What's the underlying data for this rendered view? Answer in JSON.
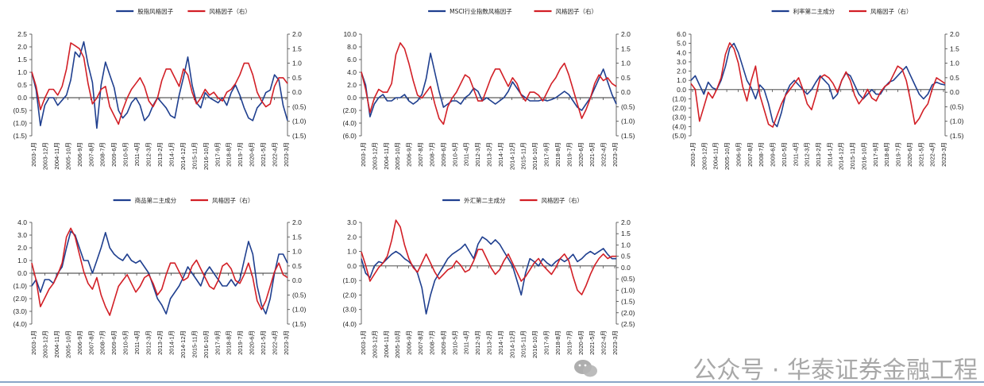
{
  "colors": {
    "blue": "#1f3f8f",
    "red": "#d21f26",
    "axis": "#444444",
    "zero": "#333333"
  },
  "chart_data": [
    {
      "type": "line",
      "legend": {
        "left": "股指风格因子",
        "right": "风格因子（右）"
      },
      "left_ticks": [
        "2.5",
        "2.0",
        "1.5",
        "1.0",
        "0.5",
        "0.0",
        "(0.5)",
        "(1.0)",
        "(1.5)"
      ],
      "right_ticks": [
        "2.0",
        "1.5",
        "1.0",
        "0.5",
        "0.0",
        "(0.5)",
        "(1.0)",
        "(1.5)"
      ],
      "x_ticks": [
        "2003-1月",
        "2003-12月",
        "2004-11月",
        "2005-10月",
        "2006-9月",
        "2007-8月",
        "2008-7月",
        "2009-6月",
        "2010-5月",
        "2011-4月",
        "2012-3月",
        "2013-2月",
        "2014-1月",
        "2014-12月",
        "2015-11月",
        "2016-10月",
        "2017-9月",
        "2018-8月",
        "2019-7月",
        "2020-6月",
        "2021-5月",
        "2022-4月",
        "2023-3月"
      ],
      "series": [
        {
          "axis": "left",
          "color": "blue",
          "values": [
            1.0,
            0.3,
            -1.1,
            -0.3,
            0.0,
            0.0,
            -0.3,
            -0.1,
            0.1,
            0.7,
            1.8,
            1.6,
            2.2,
            1.3,
            0.6,
            -1.2,
            0.5,
            1.4,
            0.9,
            0.4,
            -0.5,
            -0.8,
            -0.6,
            -0.2,
            0.0,
            -0.3,
            -0.9,
            -0.7,
            -0.3,
            0.0,
            -0.2,
            -0.4,
            -0.7,
            -0.8,
            0.1,
            0.8,
            1.6,
            0.5,
            -0.2,
            -0.4,
            0.2,
            0.0,
            -0.1,
            -0.2,
            0.0,
            -0.3,
            0.2,
            0.5,
            0.1,
            -0.4,
            -0.8,
            -0.9,
            -0.4,
            -0.2,
            0.2,
            0.3,
            0.9,
            0.7,
            -0.3,
            -0.9
          ]
        },
        {
          "axis": "right",
          "color": "red",
          "values": [
            0.7,
            0.2,
            -0.6,
            -0.2,
            0.1,
            0.1,
            -0.1,
            0.2,
            0.8,
            1.7,
            1.6,
            1.5,
            1.2,
            0.3,
            -0.4,
            -0.2,
            0.1,
            0.2,
            -0.5,
            -0.8,
            -1.1,
            -0.6,
            -0.2,
            0.1,
            0.3,
            0.5,
            0.2,
            -0.3,
            -0.5,
            -0.2,
            0.4,
            0.8,
            0.8,
            0.5,
            0.2,
            0.8,
            0.6,
            0.0,
            -0.4,
            -0.2,
            0.1,
            -0.1,
            0.0,
            -0.2,
            -0.3,
            0.0,
            0.1,
            0.3,
            0.6,
            1.0,
            1.0,
            0.6,
            0.0,
            -0.3,
            -0.5,
            -0.4,
            0.2,
            0.5,
            0.5,
            0.3
          ]
        }
      ]
    },
    {
      "type": "line",
      "legend": {
        "left": "MSCI行业指数风格因子",
        "right": "风格因子（右）"
      },
      "left_ticks": [
        "10.0",
        "8.0",
        "6.0",
        "4.0",
        "2.0",
        "0.0",
        "(2.0)",
        "(4.0)",
        "(6.0)"
      ],
      "right_ticks": [
        "2.0",
        "1.5",
        "1.0",
        "0.5",
        "0.0",
        "(0.5)",
        "(1.0)",
        "(1.5)"
      ],
      "x_ticks": [
        "2003-1月",
        "2003-12月",
        "2004-11月",
        "2005-10月",
        "2006-9月",
        "2007-8月",
        "2008-7月",
        "2009-6月",
        "2010-5月",
        "2011-4月",
        "2012-3月",
        "2013-2月",
        "2014-1月",
        "2014-12月",
        "2015-11月",
        "2016-10月",
        "2017-9月",
        "2018-8月",
        "2019-7月",
        "2020-6月",
        "2021-5月",
        "2022-4月",
        "2023-3月"
      ],
      "series": [
        {
          "axis": "left",
          "color": "blue",
          "values": [
            4.0,
            2.0,
            -3.0,
            -1.0,
            0.0,
            0.5,
            -0.5,
            -0.5,
            0.0,
            0.0,
            0.5,
            -0.5,
            -1.0,
            -0.5,
            0.5,
            3.0,
            7.0,
            4.0,
            1.0,
            -1.5,
            -1.0,
            -0.5,
            -0.5,
            -1.0,
            0.0,
            0.5,
            1.5,
            1.0,
            -0.5,
            0.0,
            -0.5,
            -1.0,
            -0.5,
            0.0,
            1.0,
            2.5,
            1.5,
            0.5,
            0.0,
            -0.5,
            -0.5,
            -0.5,
            -0.3,
            -0.5,
            -0.3,
            0.0,
            0.5,
            1.0,
            0.5,
            -0.5,
            -1.5,
            -2.0,
            -1.0,
            0.0,
            1.5,
            3.0,
            4.5,
            2.5,
            0.5,
            -1.0
          ]
        },
        {
          "axis": "right",
          "color": "red",
          "values": [
            0.7,
            0.1,
            -0.7,
            -0.2,
            0.1,
            0.0,
            0.0,
            0.3,
            1.3,
            1.7,
            1.5,
            1.0,
            0.4,
            -0.1,
            -0.2,
            0.0,
            0.2,
            -0.4,
            -0.9,
            -1.1,
            -0.5,
            -0.2,
            0.0,
            0.3,
            0.6,
            0.5,
            0.1,
            -0.3,
            -0.3,
            0.1,
            0.5,
            0.8,
            0.8,
            0.5,
            0.2,
            0.5,
            0.3,
            -0.1,
            -0.3,
            0.0,
            0.0,
            -0.1,
            -0.3,
            0.0,
            0.3,
            0.5,
            0.8,
            1.0,
            0.6,
            0.1,
            -0.4,
            -0.9,
            -0.6,
            -0.2,
            0.3,
            0.6,
            0.4,
            0.5,
            0.3,
            0.2
          ]
        }
      ]
    },
    {
      "type": "line",
      "legend": {
        "left": "利率第二主成分",
        "right": "风格因子（右）"
      },
      "left_ticks": [
        "6.0",
        "5.0",
        "4.0",
        "3.0",
        "2.0",
        "1.0",
        "0.0",
        "(1.0)",
        "(2.0)",
        "(3.0)",
        "(4.0)",
        "(5.0)"
      ],
      "right_ticks": [
        "2.0",
        "1.5",
        "1.0",
        "0.5",
        "0.0",
        "(0.5)",
        "(1.0)",
        "(1.5)"
      ],
      "x_ticks": [
        "2003-1月",
        "2003-12月",
        "2004-11月",
        "2005-10月",
        "2006-9月",
        "2007-8月",
        "2008-7月",
        "2009-6月",
        "2010-5月",
        "2011-4月",
        "2012-3月",
        "2013-2月",
        "2014-1月",
        "2014-12月",
        "2015-11月",
        "2016-10月",
        "2017-9月",
        "2018-8月",
        "2019-7月",
        "2020-6月",
        "2021-5月",
        "2022-4月",
        "2023-3月"
      ],
      "series": [
        {
          "axis": "left",
          "color": "blue",
          "values": [
            1.0,
            1.5,
            0.5,
            -0.5,
            0.8,
            0.2,
            0.0,
            1.0,
            2.5,
            4.5,
            5.0,
            4.0,
            2.5,
            1.0,
            0.2,
            -1.0,
            0.5,
            0.0,
            -1.5,
            -3.5,
            -4.0,
            -2.5,
            -0.5,
            0.5,
            1.0,
            0.5,
            0.0,
            -0.5,
            0.0,
            0.8,
            1.5,
            1.0,
            0.5,
            -1.0,
            -0.5,
            1.0,
            1.8,
            1.5,
            0.5,
            -0.5,
            -1.0,
            -0.5,
            0.0,
            -0.5,
            -0.5,
            0.3,
            0.8,
            1.0,
            1.5,
            2.0,
            2.5,
            1.5,
            0.5,
            -0.5,
            -1.0,
            -0.5,
            0.5,
            0.8,
            0.6,
            0.5
          ]
        },
        {
          "axis": "right",
          "color": "red",
          "values": [
            0.3,
            0.1,
            -1.0,
            -0.5,
            0.0,
            -0.2,
            0.1,
            0.5,
            1.3,
            1.7,
            1.5,
            1.0,
            0.2,
            -0.3,
            0.4,
            0.9,
            -0.1,
            -0.6,
            -1.1,
            -1.2,
            -0.8,
            -0.4,
            -0.1,
            0.1,
            0.3,
            0.5,
            0.1,
            -0.4,
            -0.6,
            -0.1,
            0.5,
            0.6,
            0.5,
            0.3,
            0.0,
            0.4,
            0.7,
            0.4,
            -0.1,
            -0.4,
            -0.2,
            0.1,
            -0.2,
            -0.3,
            0.0,
            0.2,
            0.3,
            0.6,
            0.9,
            0.8,
            0.4,
            -0.3,
            -1.1,
            -0.9,
            -0.6,
            -0.4,
            0.1,
            0.5,
            0.4,
            0.3
          ]
        }
      ]
    },
    {
      "type": "line",
      "legend": {
        "left": "商品第二主成分",
        "right": "风格因子（右）"
      },
      "left_ticks": [
        "4.0",
        "3.0",
        "2.0",
        "1.0",
        "0.0",
        "(1.0)",
        "(2.0)",
        "(3.0)",
        "(4.0)"
      ],
      "right_ticks": [
        "2.0",
        "1.5",
        "1.0",
        "0.5",
        "0.0",
        "(0.5)",
        "(1.0)",
        "(1.5)"
      ],
      "x_ticks": [
        "2003-1月",
        "2003-12月",
        "2004-11月",
        "2005-10月",
        "2006-9月",
        "2007-8月",
        "2008-7月",
        "2009-6月",
        "2010-5月",
        "2011-4月",
        "2012-3月",
        "2013-2月",
        "2014-1月",
        "2014-12月",
        "2015-11月",
        "2016-10月",
        "2017-9月",
        "2018-8月",
        "2019-7月",
        "2020-6月",
        "2021-5月",
        "2022-4月",
        "2023-3月"
      ],
      "series": [
        {
          "axis": "left",
          "color": "blue",
          "values": [
            -1.0,
            -0.5,
            -1.5,
            -0.5,
            -0.5,
            -0.8,
            0.0,
            0.5,
            2.0,
            3.3,
            3.0,
            2.0,
            1.0,
            1.0,
            0.0,
            1.0,
            2.0,
            3.2,
            2.0,
            1.5,
            1.2,
            1.0,
            1.5,
            1.0,
            0.8,
            1.0,
            0.5,
            0.0,
            -1.0,
            -2.0,
            -2.5,
            -3.2,
            -2.0,
            -1.5,
            -1.0,
            -0.3,
            0.5,
            0.0,
            -0.5,
            -1.0,
            0.0,
            0.5,
            0.0,
            -0.5,
            -1.0,
            -1.0,
            -0.5,
            -1.0,
            -0.5,
            1.0,
            2.5,
            1.5,
            -1.0,
            -2.5,
            -3.2,
            -2.0,
            0.0,
            1.5,
            1.5,
            0.8
          ]
        },
        {
          "axis": "right",
          "color": "red",
          "values": [
            0.6,
            0.0,
            -0.9,
            -0.6,
            -0.3,
            -0.1,
            0.2,
            0.6,
            1.5,
            1.8,
            1.5,
            0.9,
            0.3,
            -0.1,
            -0.3,
            0.1,
            -0.5,
            -0.9,
            -1.2,
            -0.7,
            -0.2,
            0.0,
            0.2,
            -0.1,
            -0.4,
            -0.2,
            0.1,
            0.2,
            -0.1,
            -0.5,
            -0.3,
            0.2,
            0.6,
            0.6,
            0.3,
            0.0,
            0.1,
            0.5,
            0.7,
            0.4,
            0.1,
            -0.2,
            -0.3,
            0.0,
            0.5,
            0.6,
            0.4,
            0.0,
            -0.1,
            0.2,
            0.6,
            0.1,
            -0.7,
            -1.0,
            -0.7,
            -0.2,
            0.3,
            0.6,
            0.2,
            0.1
          ]
        }
      ]
    },
    {
      "type": "line",
      "legend": {
        "left": "外汇第二主成分",
        "right": "风格因子（右）"
      },
      "left_ticks": [
        "3.0",
        "2.0",
        "1.0",
        "0.0",
        "(1.0)",
        "(2.0)",
        "(3.0)",
        "(4.0)"
      ],
      "right_ticks": [
        "2.0",
        "1.5",
        "1.0",
        "0.5",
        "0.0",
        "(0.5)",
        "(1.0)",
        "(1.5)",
        "(2.0)",
        "(2.5)"
      ],
      "x_ticks": [
        "2003-1月",
        "2003-12月",
        "2004-11月",
        "2005-10月",
        "2006-9月",
        "2007-8月",
        "2008-7月",
        "2009-6月",
        "2010-5月",
        "2011-4月",
        "2012-3月",
        "2013-2月",
        "2014-1月",
        "2014-12月",
        "2015-11月",
        "2016-10月",
        "2017-9月",
        "2018-8月",
        "2019-7月",
        "2020-6月",
        "2021-5月",
        "2022-4月",
        "2023-3月"
      ],
      "series": [
        {
          "axis": "left",
          "color": "blue",
          "values": [
            0.5,
            -0.5,
            -0.8,
            0.0,
            0.3,
            0.2,
            0.5,
            0.8,
            1.0,
            0.8,
            0.5,
            0.3,
            0.0,
            -0.5,
            -1.5,
            -3.3,
            -2.0,
            -1.0,
            -0.5,
            0.0,
            0.5,
            0.8,
            1.0,
            1.2,
            1.5,
            1.0,
            0.5,
            1.5,
            2.0,
            1.8,
            1.5,
            1.8,
            1.5,
            1.0,
            0.5,
            0.0,
            -1.0,
            -2.0,
            -0.5,
            0.5,
            0.3,
            0.0,
            0.5,
            0.2,
            0.0,
            0.3,
            0.5,
            0.3,
            0.5,
            0.8,
            0.3,
            0.5,
            0.8,
            1.0,
            0.8,
            1.0,
            1.2,
            0.8,
            0.5,
            0.5
          ]
        },
        {
          "axis": "right",
          "color": "red",
          "values": [
            0.7,
            0.1,
            -0.6,
            -0.3,
            0.0,
            0.2,
            0.5,
            1.2,
            2.1,
            1.8,
            1.0,
            0.4,
            0.0,
            -0.2,
            0.2,
            0.6,
            0.2,
            -0.2,
            -0.5,
            -0.3,
            -0.1,
            0.0,
            0.3,
            0.1,
            -0.2,
            -0.1,
            0.3,
            0.8,
            0.8,
            0.4,
            0.0,
            -0.3,
            -0.1,
            0.3,
            0.6,
            0.2,
            -0.2,
            -0.6,
            -0.4,
            -0.1,
            0.2,
            0.4,
            0.1,
            -0.1,
            -0.3,
            0.0,
            0.4,
            0.6,
            0.3,
            -0.4,
            -1.0,
            -1.2,
            -0.8,
            -0.3,
            0.1,
            0.4,
            0.6,
            0.4,
            0.5,
            0.5
          ]
        }
      ]
    }
  ],
  "watermark": "公众号 · 华泰证券金融工程"
}
